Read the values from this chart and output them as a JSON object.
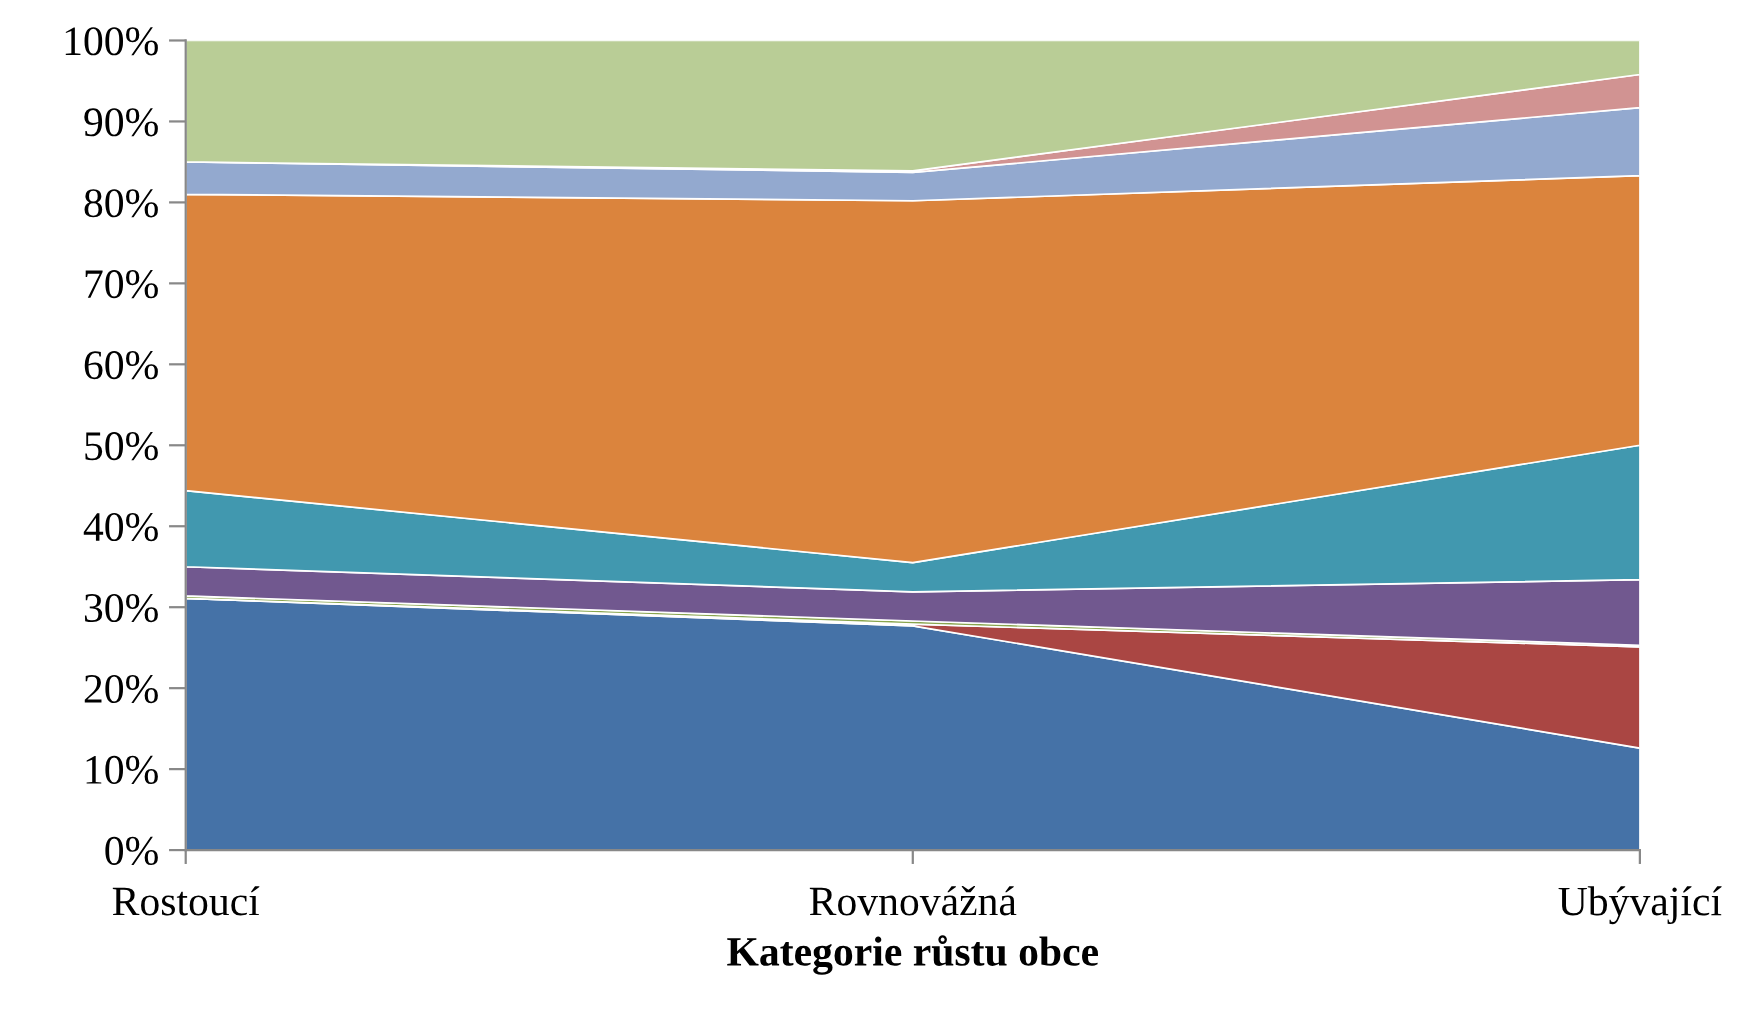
{
  "chart_data": {
    "type": "area",
    "stacked": true,
    "xlabel": "Kategorie růstu obce",
    "categories": [
      "Rostoucí",
      "Rovnovážná",
      "Ubývající"
    ],
    "ylim": [
      0,
      100
    ],
    "yticks": [
      {
        "value": 0,
        "label": "0%"
      },
      {
        "value": 10,
        "label": "10%"
      },
      {
        "value": 20,
        "label": "20%"
      },
      {
        "value": 30,
        "label": "30%"
      },
      {
        "value": 40,
        "label": "40%"
      },
      {
        "value": 50,
        "label": "50%"
      },
      {
        "value": 60,
        "label": "60%"
      },
      {
        "value": 70,
        "label": "70%"
      },
      {
        "value": 80,
        "label": "80%"
      },
      {
        "value": 90,
        "label": "90%"
      },
      {
        "value": 100,
        "label": "100%"
      }
    ],
    "grid": false,
    "series": [
      {
        "color": "#4572a7",
        "values": [
          31.1,
          27.7,
          12.6
        ]
      },
      {
        "color": "#aa4643",
        "values": [
          0,
          0.2,
          12.5
        ]
      },
      {
        "color": "#89a54e",
        "values": [
          0.3,
          0.4,
          0.2
        ]
      },
      {
        "color": "#71588f",
        "values": [
          3.6,
          3.6,
          8.1
        ]
      },
      {
        "color": "#4198af",
        "values": [
          9.4,
          3.6,
          16.6
        ]
      },
      {
        "color": "#db843d",
        "values": [
          36.6,
          44.7,
          33.3
        ]
      },
      {
        "color": "#93a9cf",
        "values": [
          4.0,
          3.5,
          8.4
        ]
      },
      {
        "color": "#d19392",
        "values": [
          0,
          0.2,
          4.1
        ]
      },
      {
        "color": "#b9cd96",
        "values": [
          15.0,
          16.1,
          4.2
        ]
      }
    ]
  }
}
